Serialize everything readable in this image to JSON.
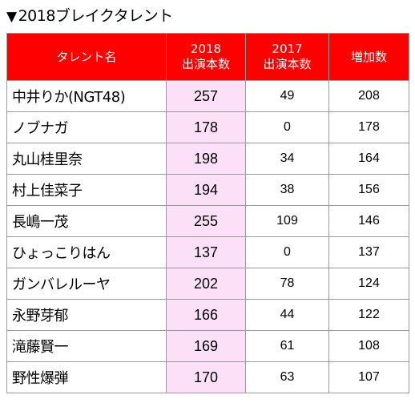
{
  "title": {
    "marker": "▼",
    "text": "2018ブレイクタレント"
  },
  "colors": {
    "header_bg": "#ff0000",
    "header_text": "#ffffff",
    "highlight_2018": "#fce0f8",
    "border": "#9a9a9a"
  },
  "table": {
    "headers": {
      "name": "タレント名",
      "col2018_line1": "2018",
      "col2018_line2": "出演本数",
      "col2017_line1": "2017",
      "col2017_line2": "出演本数",
      "increase": "増加数"
    },
    "rows": [
      {
        "name": "中井りか(NGT48)",
        "y2018": "257",
        "y2017": "49",
        "increase": "208"
      },
      {
        "name": "ノブナガ",
        "y2018": "178",
        "y2017": "0",
        "increase": "178"
      },
      {
        "name": "丸山桂里奈",
        "y2018": "198",
        "y2017": "34",
        "increase": "164"
      },
      {
        "name": "村上佳菜子",
        "y2018": "194",
        "y2017": "38",
        "increase": "156"
      },
      {
        "name": "長嶋一茂",
        "y2018": "255",
        "y2017": "109",
        "increase": "146"
      },
      {
        "name": "ひょっこりはん",
        "y2018": "137",
        "y2017": "0",
        "increase": "137"
      },
      {
        "name": "ガンバレルーヤ",
        "y2018": "202",
        "y2017": "78",
        "increase": "124"
      },
      {
        "name": "永野芽郁",
        "y2018": "166",
        "y2017": "44",
        "increase": "122"
      },
      {
        "name": "滝藤賢一",
        "y2018": "169",
        "y2017": "61",
        "increase": "108"
      },
      {
        "name": "野性爆弾",
        "y2018": "170",
        "y2017": "63",
        "increase": "107"
      }
    ]
  }
}
